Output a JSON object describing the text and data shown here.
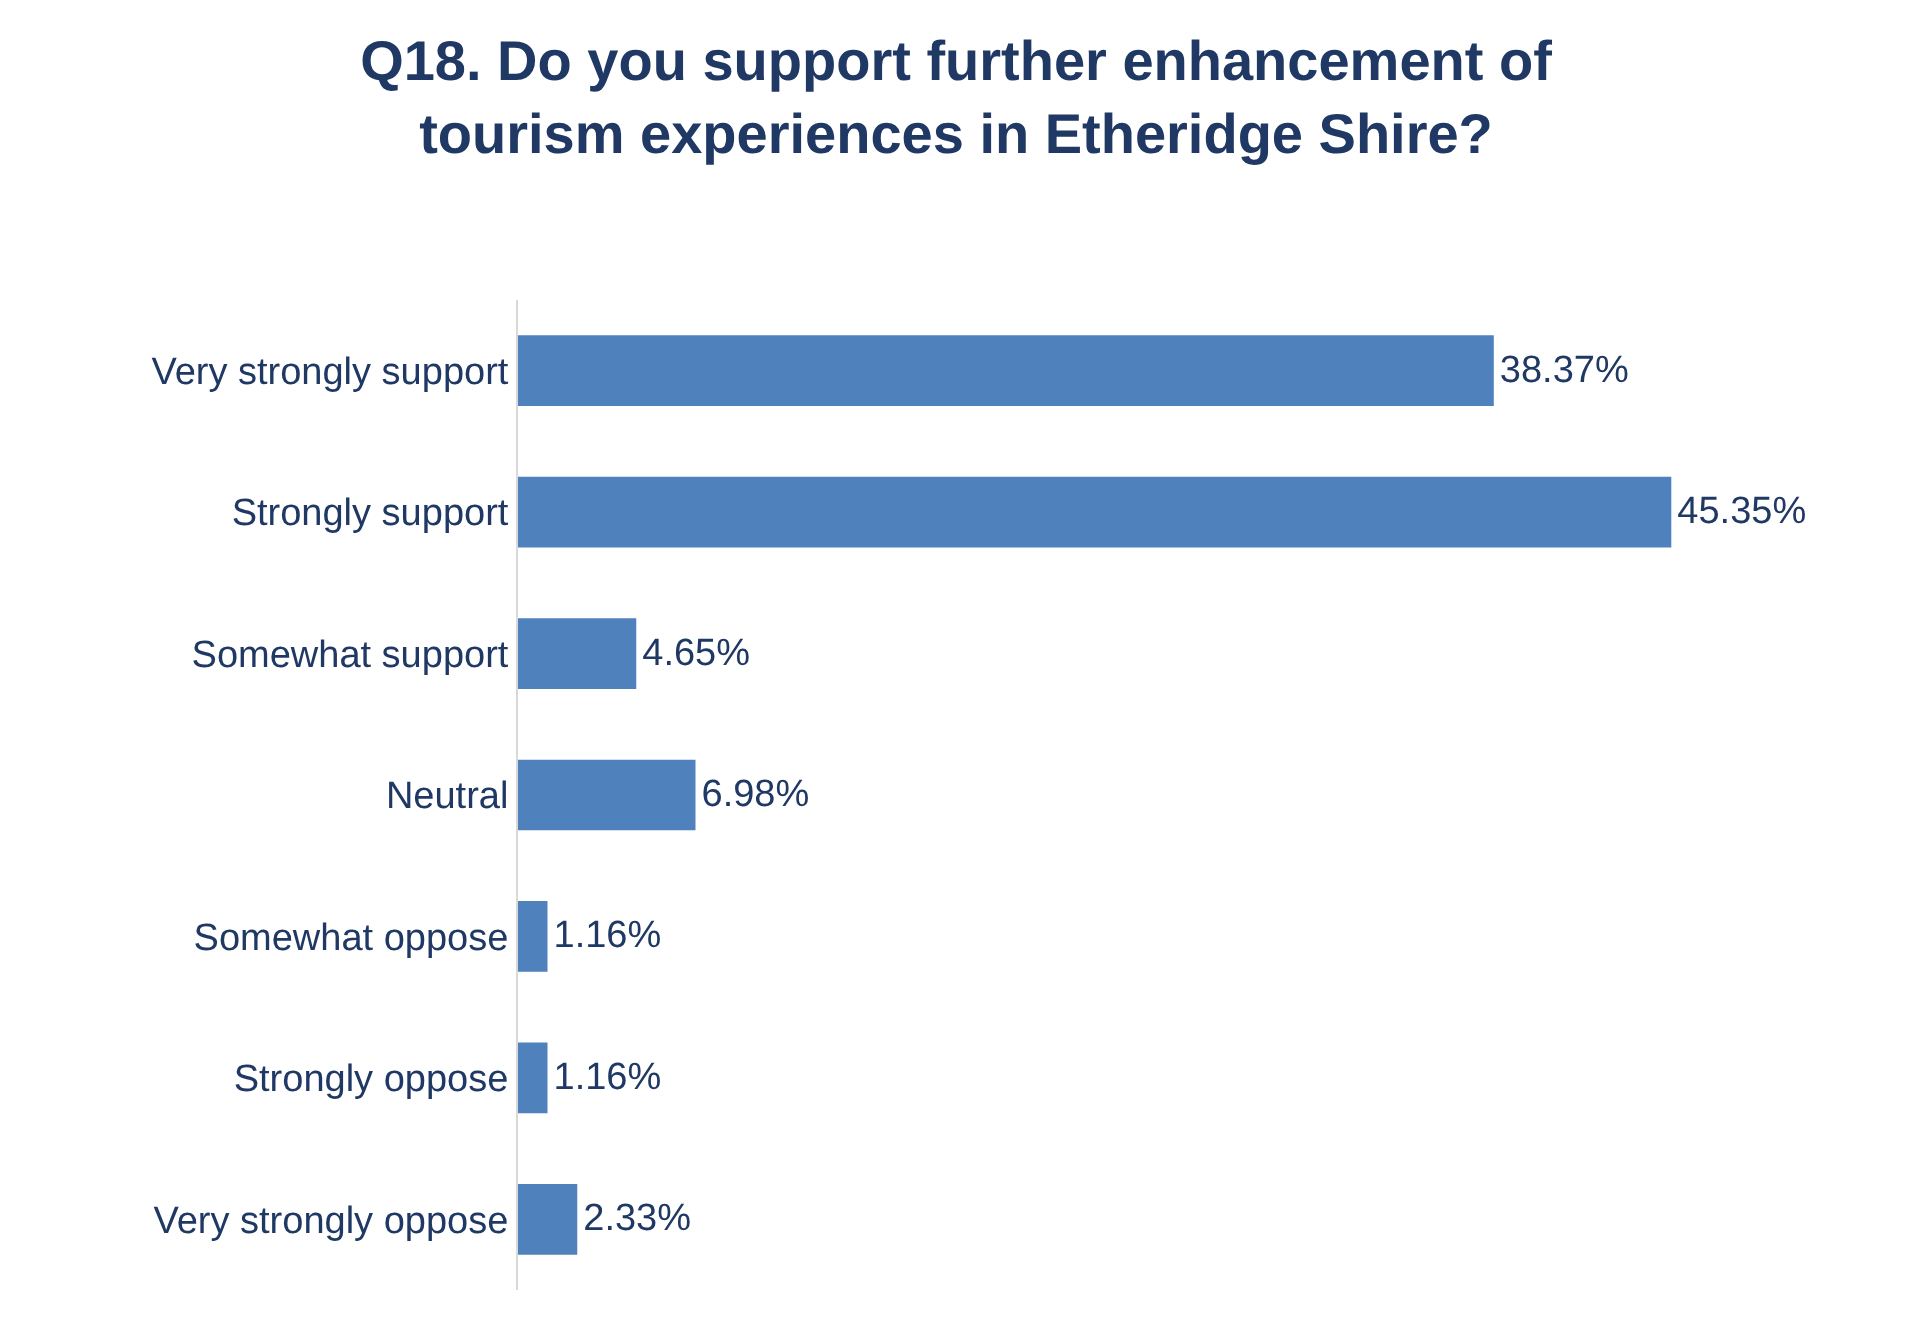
{
  "chart_data": {
    "type": "bar",
    "orientation": "horizontal",
    "title": "Q18. Do you support further enhancement of\ntourism experiences in Etheridge Shire?",
    "categories": [
      "Very strongly support",
      "Strongly support",
      "Somewhat support",
      "Neutral",
      "Somewhat oppose",
      "Strongly oppose",
      "Very strongly oppose"
    ],
    "values": [
      38.37,
      45.35,
      4.65,
      6.98,
      1.16,
      1.16,
      2.33
    ],
    "value_labels": [
      "38.37%",
      "45.35%",
      "4.65%",
      "6.98%",
      "1.16%",
      "1.16%",
      "2.33%"
    ],
    "color": "#4f81bd"
  }
}
